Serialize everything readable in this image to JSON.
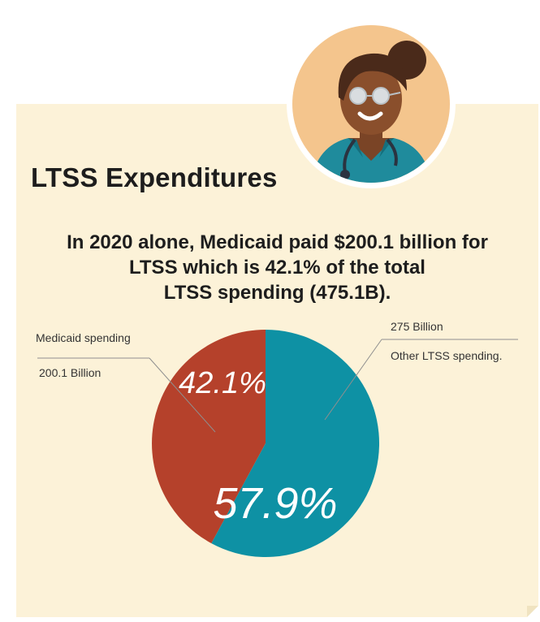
{
  "header": {
    "title": "LTSS Expenditures",
    "subtitle_lines": [
      "In 2020 alone, Medicaid paid $200.1 billion for",
      "LTSS which is 42.1% of the total",
      "LTSS spending (475.1B)."
    ]
  },
  "avatar": {
    "icon": "nurse-avatar-icon"
  },
  "colors": {
    "background": "#fcf2d8",
    "medicaid": "#b5412b",
    "other": "#0e91a4",
    "text": "#1d1d1d",
    "avatar_bg": "#f4c58d"
  },
  "chart_data": {
    "type": "pie",
    "title": "",
    "slices": [
      {
        "name": "Medicaid spending",
        "amount": "200.1 Billion",
        "percent": 42.1,
        "label": "42.1%"
      },
      {
        "name": "Other LTSS spending.",
        "amount": "275 Billion",
        "percent": 57.9,
        "label": "57.9%"
      }
    ]
  }
}
